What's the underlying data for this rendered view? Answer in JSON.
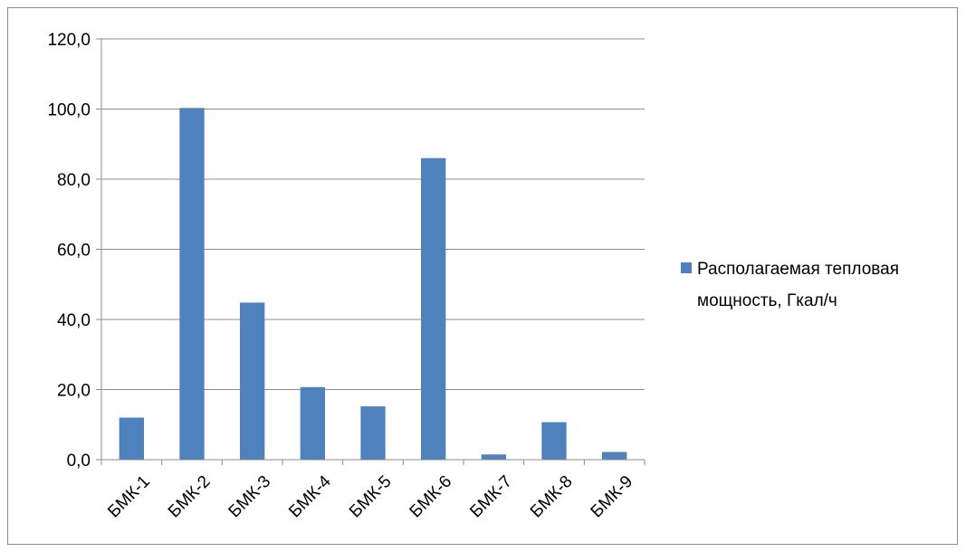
{
  "chart_data": {
    "type": "bar",
    "categories": [
      "БМК-1",
      "БМК-2",
      "БМК-3",
      "БМК-4",
      "БМК-5",
      "БМК-6",
      "БМК-7",
      "БМК-8",
      "БМК-9"
    ],
    "series": [
      {
        "name": "Располагаемая тепловая мощность, Гкал/ч",
        "values": [
          12.0,
          100.3,
          44.8,
          20.7,
          15.2,
          86.0,
          1.5,
          10.7,
          2.2
        ],
        "color": "#4f81bd"
      }
    ],
    "y_ticks": [
      "0,0",
      "20,0",
      "40,0",
      "60,0",
      "80,0",
      "100,0",
      "120,0"
    ],
    "ylim": [
      0,
      120
    ],
    "grid": true,
    "legend_position": "right",
    "legend_lines": [
      "Располагаемая тепловая",
      "мощность, Гкал/ч"
    ]
  }
}
